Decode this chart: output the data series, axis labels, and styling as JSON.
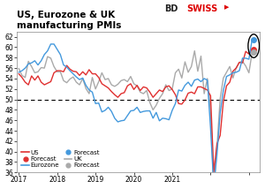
{
  "title": "US, Eurozone & UK\nmanufacturing PMIs",
  "ylim": [
    36,
    63
  ],
  "yticks": [
    36,
    38,
    40,
    42,
    44,
    46,
    48,
    50,
    52,
    54,
    56,
    58,
    60,
    62
  ],
  "dashed_line_y": 50,
  "bg_color": "#ffffff",
  "plot_bg_color": "#ffffff",
  "us_color": "#e03030",
  "ez_color": "#4499dd",
  "uk_color": "#aaaaaa",
  "us_data": [
    54.9,
    54.2,
    53.3,
    52.8,
    54.5,
    53.7,
    54.5,
    53.3,
    52.8,
    53.1,
    53.4,
    55.1,
    55.5,
    55.5,
    55.3,
    56.5,
    55.8,
    55.4,
    55.3,
    54.6,
    55.3,
    54.7,
    55.7,
    54.9,
    54.9,
    54.2,
    53.0,
    52.6,
    52.2,
    51.5,
    50.9,
    50.4,
    51.1,
    51.3,
    52.6,
    53.0,
    51.9,
    52.7,
    51.7,
    52.4,
    52.2,
    51.4,
    50.4,
    51.1,
    51.8,
    51.5,
    52.4,
    52.6,
    51.9,
    50.9,
    49.2,
    49.1,
    49.9,
    51.2,
    51.4,
    51.1,
    52.4,
    52.4,
    52.1,
    51.8,
    50.7,
    36.1,
    41.5,
    43.1,
    49.6,
    52.6,
    53.3,
    55.4,
    56.0,
    57.1,
    57.0,
    59.2,
    58.7,
    59.5
  ],
  "ez_data": [
    55.2,
    55.5,
    56.0,
    56.8,
    57.0,
    57.4,
    56.6,
    57.4,
    58.6,
    59.3,
    60.6,
    60.6,
    59.6,
    58.6,
    56.6,
    56.2,
    55.5,
    54.9,
    54.3,
    53.8,
    54.1,
    52.7,
    51.8,
    51.4,
    49.2,
    49.3,
    47.6,
    47.9,
    48.5,
    47.7,
    46.4,
    45.7,
    45.9,
    46.0,
    46.9,
    47.8,
    47.9,
    48.5,
    47.5,
    47.7,
    47.8,
    47.8,
    46.4,
    47.5,
    45.9,
    46.4,
    46.3,
    46.1,
    47.9,
    49.2,
    51.8,
    51.6,
    52.7,
    53.3,
    52.5,
    53.7,
    53.9,
    53.4,
    54.0,
    53.7,
    44.5,
    33.4,
    39.4,
    47.4,
    51.7,
    54.4,
    54.7,
    55.1,
    55.2,
    55.5,
    57.9,
    57.9,
    57.7,
    61.5
  ],
  "uk_data": [
    55.9,
    54.6,
    54.2,
    57.3,
    56.3,
    55.1,
    55.3,
    56.1,
    56.0,
    58.2,
    57.9,
    56.3,
    55.3,
    55.3,
    53.6,
    53.2,
    53.9,
    54.3,
    53.3,
    52.8,
    54.0,
    52.1,
    51.1,
    54.2,
    52.0,
    53.4,
    55.1,
    53.8,
    54.0,
    52.8,
    52.5,
    52.9,
    53.6,
    53.8,
    53.4,
    54.4,
    53.0,
    52.6,
    51.4,
    51.1,
    51.7,
    49.4,
    48.0,
    48.9,
    50.2,
    51.1,
    52.8,
    51.7,
    52.0,
    55.1,
    55.8,
    54.1,
    57.2,
    55.2,
    56.3,
    59.3,
    55.4,
    58.3,
    51.1,
    54.0,
    47.8,
    32.9,
    40.7,
    50.1,
    54.1,
    55.2,
    56.3,
    54.1,
    56.0,
    57.1,
    57.3,
    56.4,
    55.1,
    59.0
  ],
  "forecast_us": 59.5,
  "forecast_ez": 61.5,
  "forecast_uk": 59.0,
  "n_points": 74,
  "xtick_positions": [
    0,
    12,
    24,
    36,
    48,
    60,
    72
  ],
  "xtick_labels": [
    "2017",
    "2018",
    "2019",
    "2020",
    "2021",
    "",
    ""
  ],
  "bdswiss_bd_color": "#222222",
  "bdswiss_swiss_color": "#dd0000"
}
